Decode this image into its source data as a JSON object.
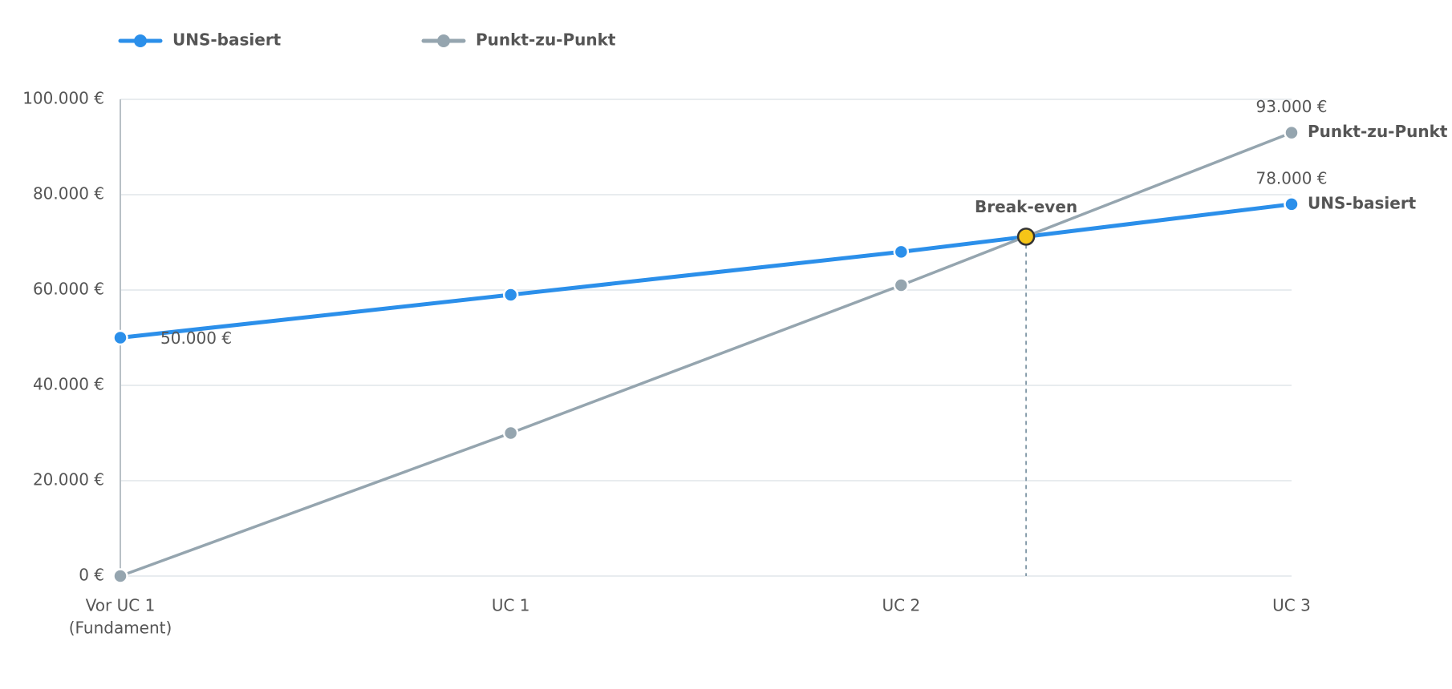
{
  "chart_data": {
    "type": "line",
    "categories": [
      "Vor UC 1",
      "UC 1",
      "UC 2",
      "UC 3"
    ],
    "category_notes": [
      "(Fundament)",
      null,
      null,
      null
    ],
    "series": [
      {
        "name": "UNS-basiert",
        "color": "#2b8fea",
        "values": [
          50000,
          59000,
          68000,
          78000
        ],
        "value_labels": [
          "50.000 €",
          null,
          null,
          "78.000 €"
        ]
      },
      {
        "name": "Punkt-zu-Punkt",
        "color": "#95a5af",
        "values": [
          0,
          30000,
          61000,
          93000
        ],
        "value_labels": [
          null,
          null,
          null,
          "93.000 €"
        ]
      }
    ],
    "annotations": [
      {
        "text": "Break-even",
        "x": 2.32,
        "y": 71200,
        "color": "#f5c518"
      }
    ],
    "ylim": [
      0,
      100000
    ],
    "yticks": [
      {
        "value": 0,
        "label": "0 €"
      },
      {
        "value": 20000,
        "label": "20.000 €"
      },
      {
        "value": 40000,
        "label": "40.000 €"
      },
      {
        "value": 60000,
        "label": "60.000 €"
      },
      {
        "value": 80000,
        "label": "80.000 €"
      },
      {
        "value": 100000,
        "label": "100.000 €"
      }
    ],
    "grid": true,
    "legend": "top-left"
  }
}
